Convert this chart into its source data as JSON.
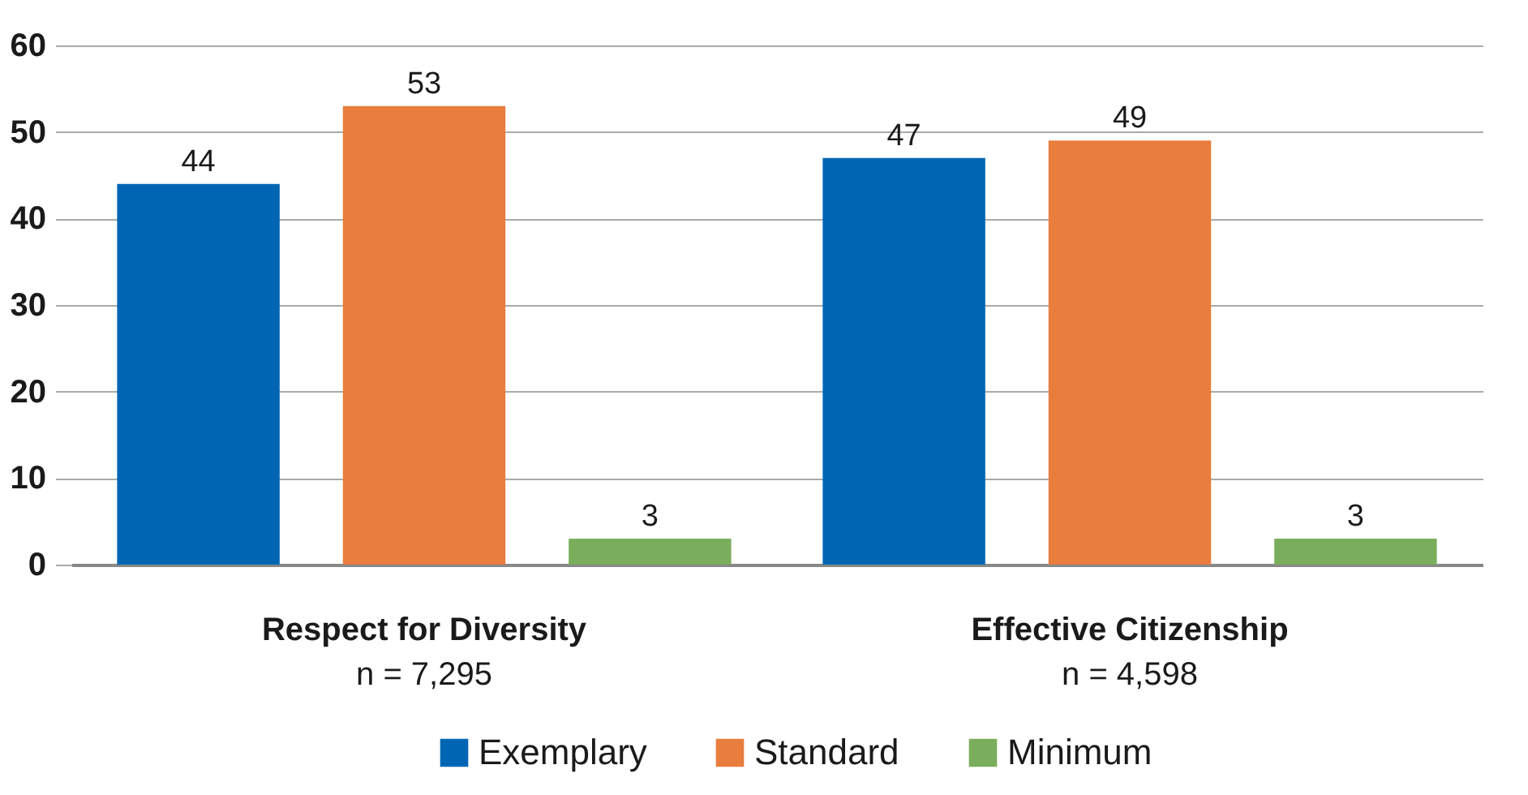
{
  "chart_data": {
    "type": "bar",
    "categories": [
      "Respect for Diversity",
      "Effective Citizenship"
    ],
    "series": [
      {
        "name": "Exemplary",
        "color": "#0066b3",
        "values": [
          44,
          47
        ]
      },
      {
        "name": "Standard",
        "color": "#e87d3e",
        "values": [
          53,
          49
        ]
      },
      {
        "name": "Minimum",
        "color": "#7aae5c",
        "values": [
          3,
          3
        ]
      }
    ],
    "ylim": [
      0,
      60
    ],
    "yticks": [
      0,
      10,
      20,
      30,
      40,
      50,
      60
    ],
    "annotations": [
      "n = 7,295",
      "n = 4,598"
    ],
    "data_labels": true,
    "grid": "y",
    "legend": "bottom"
  }
}
